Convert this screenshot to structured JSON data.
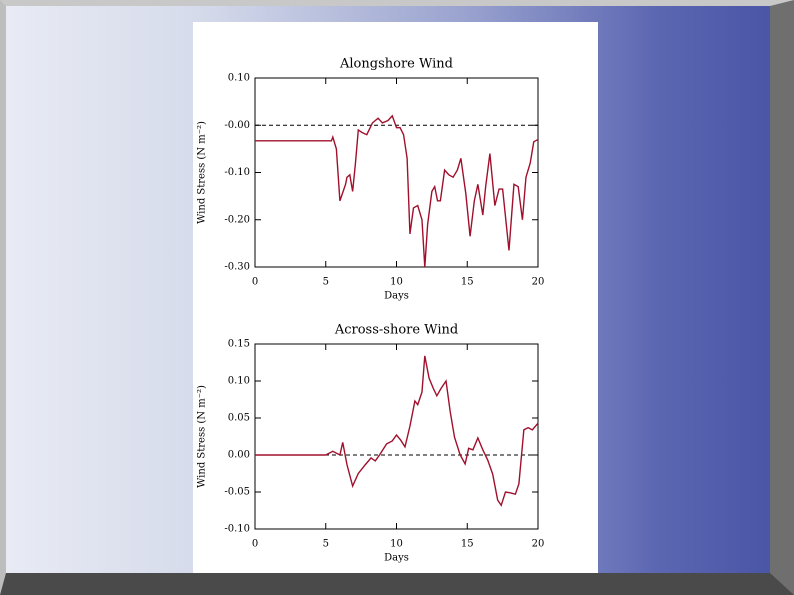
{
  "chart_data": [
    {
      "type": "line",
      "title": "Alongshore Wind",
      "xlabel": "Days",
      "ylabel": "Wind Stress (N m⁻²)",
      "color": "#a0102c",
      "xlim": [
        0,
        20
      ],
      "xticks": [
        0,
        5,
        10,
        15,
        20
      ],
      "ylim": [
        -0.3,
        0.1
      ],
      "yticks": [
        {
          "value": 0.1,
          "label": "0.10"
        },
        {
          "value": 0,
          "label": "-0.00"
        },
        {
          "value": -0.1,
          "label": "-0.10"
        },
        {
          "value": -0.2,
          "label": "-0.20"
        },
        {
          "value": -0.3,
          "label": "-0.30"
        }
      ],
      "hline": 0,
      "x": [
        0,
        5.4,
        5.5,
        5.75,
        6.0,
        6.4,
        6.5,
        6.7,
        6.9,
        7.1,
        7.3,
        7.55,
        7.9,
        8.3,
        8.7,
        9.0,
        9.4,
        9.7,
        10.0,
        10.25,
        10.5,
        10.75,
        10.95,
        11.2,
        11.5,
        11.8,
        12.0,
        12.2,
        12.5,
        12.7,
        12.9,
        13.1,
        13.4,
        13.7,
        14.0,
        14.3,
        14.55,
        14.9,
        15.2,
        15.5,
        15.75,
        16.1,
        16.3,
        16.6,
        16.95,
        17.25,
        17.5,
        17.95,
        18.3,
        18.6,
        18.9,
        19.15,
        19.45,
        19.7,
        20
      ],
      "values": [
        -0.033,
        -0.033,
        -0.025,
        -0.05,
        -0.16,
        -0.125,
        -0.11,
        -0.105,
        -0.14,
        -0.08,
        -0.01,
        -0.015,
        -0.02,
        0.005,
        0.015,
        0.005,
        0.01,
        0.02,
        -0.005,
        -0.005,
        -0.02,
        -0.07,
        -0.23,
        -0.175,
        -0.17,
        -0.2,
        -0.3,
        -0.21,
        -0.14,
        -0.13,
        -0.16,
        -0.16,
        -0.095,
        -0.105,
        -0.11,
        -0.095,
        -0.07,
        -0.145,
        -0.235,
        -0.16,
        -0.125,
        -0.19,
        -0.13,
        -0.06,
        -0.17,
        -0.135,
        -0.135,
        -0.265,
        -0.125,
        -0.13,
        -0.2,
        -0.11,
        -0.08,
        -0.035,
        -0.03
      ]
    },
    {
      "type": "line",
      "title": "Across-shore Wind",
      "xlabel": "Days",
      "ylabel": "Wind Stress (N m⁻²)",
      "color": "#a0102c",
      "xlim": [
        0,
        20
      ],
      "xticks": [
        0,
        5,
        10,
        15,
        20
      ],
      "ylim": [
        -0.1,
        0.15
      ],
      "yticks": [
        {
          "value": 0.15,
          "label": "0.15"
        },
        {
          "value": 0.1,
          "label": "0.10"
        },
        {
          "value": 0.05,
          "label": "0.05"
        },
        {
          "value": 0,
          "label": "0.00"
        },
        {
          "value": -0.05,
          "label": "-0.05"
        },
        {
          "value": -0.1,
          "label": "-0.10"
        }
      ],
      "hline": 0,
      "x": [
        0,
        5.0,
        5.5,
        6.0,
        6.2,
        6.5,
        6.9,
        7.3,
        7.8,
        8.2,
        8.5,
        8.8,
        9.3,
        9.7,
        10.0,
        10.3,
        10.6,
        10.95,
        11.3,
        11.5,
        11.8,
        12.0,
        12.3,
        12.6,
        12.85,
        13.15,
        13.5,
        13.8,
        14.1,
        14.5,
        14.85,
        15.1,
        15.4,
        15.75,
        16.1,
        16.45,
        16.8,
        17.15,
        17.4,
        17.7,
        18.0,
        18.4,
        18.65,
        19.0,
        19.3,
        19.6,
        20
      ],
      "values": [
        0,
        0,
        0.005,
        0,
        0.017,
        -0.013,
        -0.042,
        -0.025,
        -0.013,
        -0.004,
        -0.008,
        0,
        0.015,
        0.019,
        0.027,
        0.02,
        0.011,
        0.039,
        0.073,
        0.068,
        0.085,
        0.134,
        0.104,
        0.09,
        0.08,
        0.09,
        0.1,
        0.058,
        0.024,
        0,
        -0.012,
        0.009,
        0.007,
        0.023,
        0.007,
        -0.007,
        -0.026,
        -0.061,
        -0.068,
        -0.05,
        -0.051,
        -0.053,
        -0.039,
        0.034,
        0.037,
        0.034,
        0.043
      ]
    }
  ]
}
